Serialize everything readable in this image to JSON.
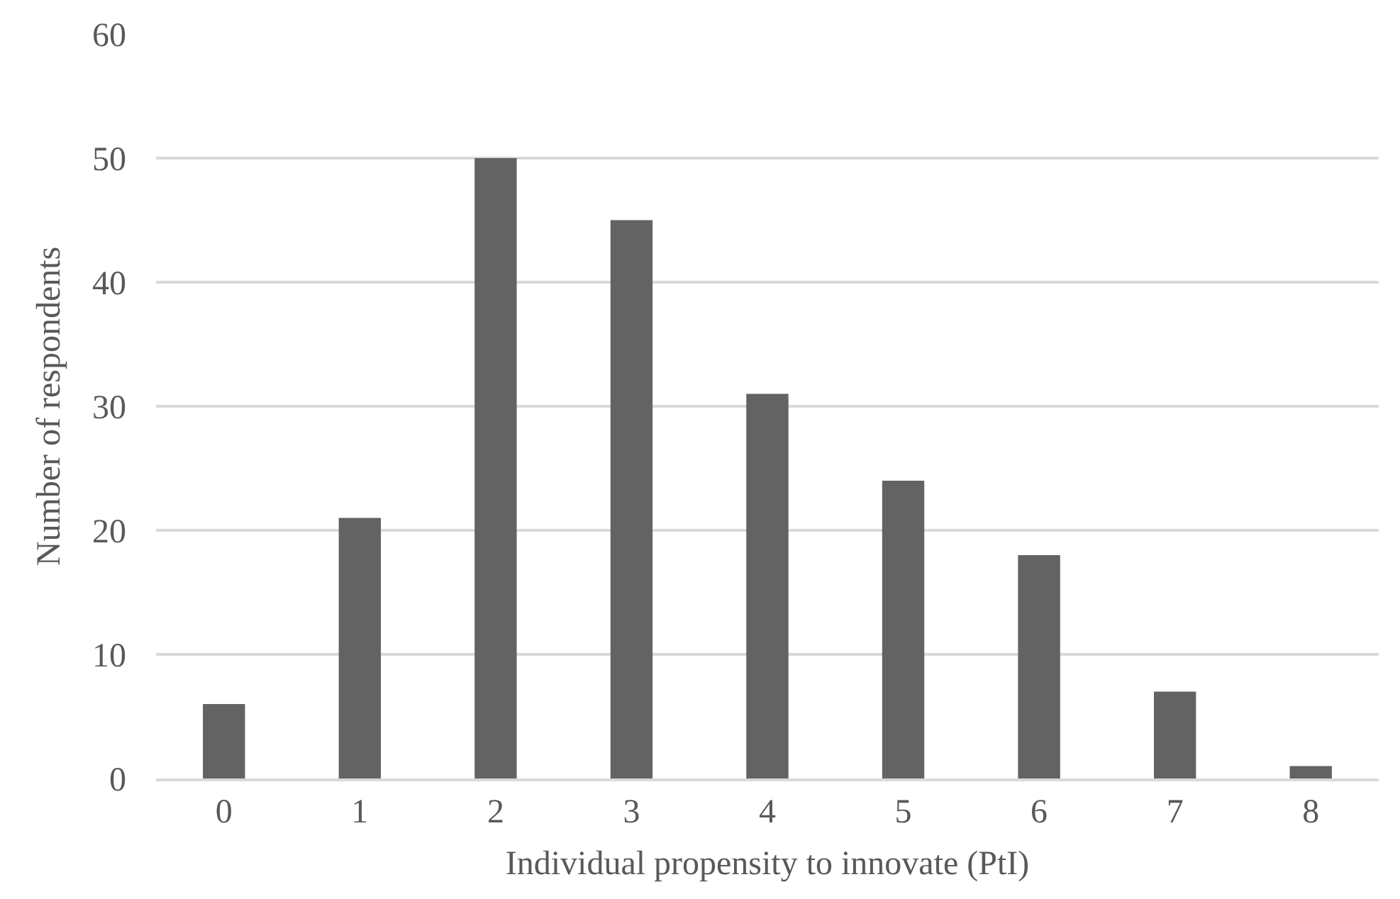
{
  "chart_data": {
    "type": "bar",
    "xlabel": "Individual propensity to innovate (PtI)",
    "ylabel": "Number of respondents",
    "categories": [
      "0",
      "1",
      "2",
      "3",
      "4",
      "5",
      "6",
      "7",
      "8"
    ],
    "values": [
      6,
      21,
      50,
      45,
      31,
      24,
      18,
      7,
      1
    ],
    "color": "#636363",
    "ylim": [
      0,
      60
    ],
    "yticks": [
      0,
      10,
      20,
      30,
      40,
      50,
      60
    ],
    "grid": "y"
  }
}
